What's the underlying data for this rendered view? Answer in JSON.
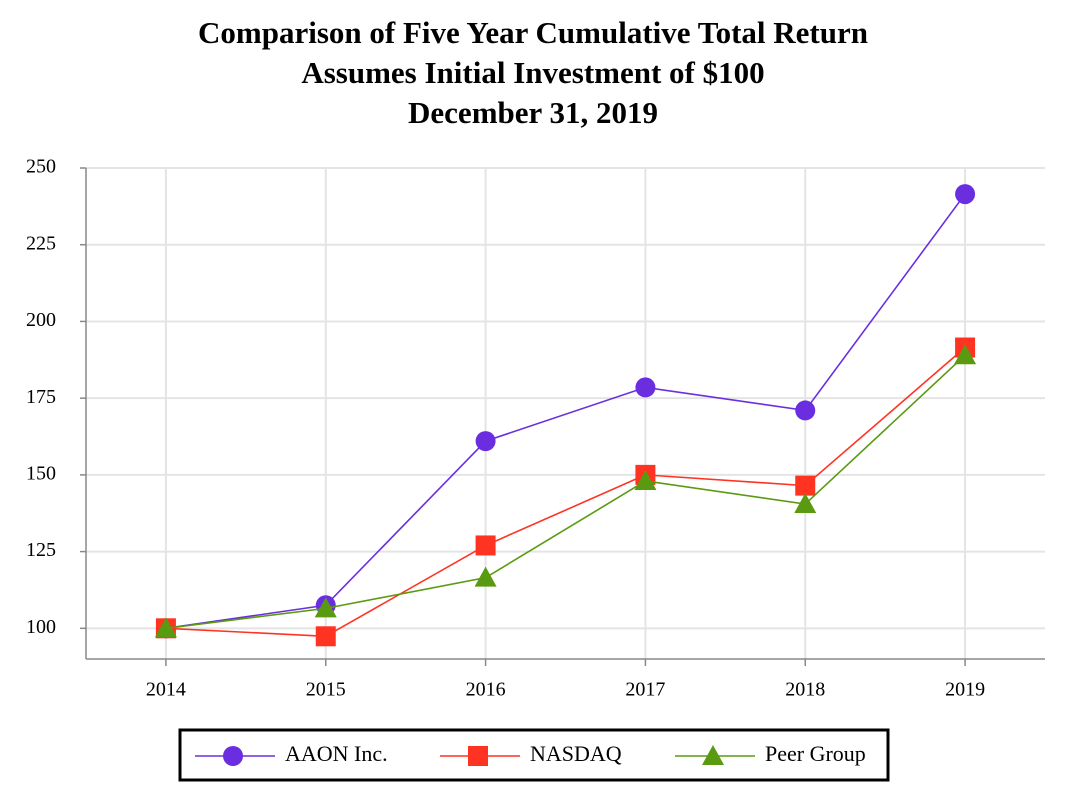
{
  "chart_data": {
    "type": "line",
    "title": "Comparison of Five Year Cumulative Total Return",
    "subtitle": [
      "Assumes Initial Investment of $100",
      "December 31, 2019"
    ],
    "x": [
      2014,
      2015,
      2016,
      2017,
      2018,
      2019
    ],
    "xlim": [
      2013.5,
      2019.5
    ],
    "xticks": [
      2014,
      2015,
      2016,
      2017,
      2018,
      2019
    ],
    "ylim": [
      90,
      250
    ],
    "yticks": [
      100,
      125,
      150,
      175,
      200,
      225,
      250
    ],
    "grid": true,
    "legend": "bottom",
    "series": [
      {
        "name": "AAON Inc.",
        "color": "#6a2ee0",
        "marker": "circle",
        "values": [
          100,
          107.5,
          161,
          178.5,
          171,
          241.5
        ]
      },
      {
        "name": "NASDAQ",
        "color": "#ff3322",
        "marker": "square",
        "values": [
          100,
          97.4,
          127,
          150,
          146.5,
          191.5
        ]
      },
      {
        "name": "Peer Group",
        "color": "#5a9a10",
        "marker": "triangle",
        "values": [
          100,
          106.5,
          116.5,
          148,
          140.5,
          189
        ]
      }
    ]
  }
}
